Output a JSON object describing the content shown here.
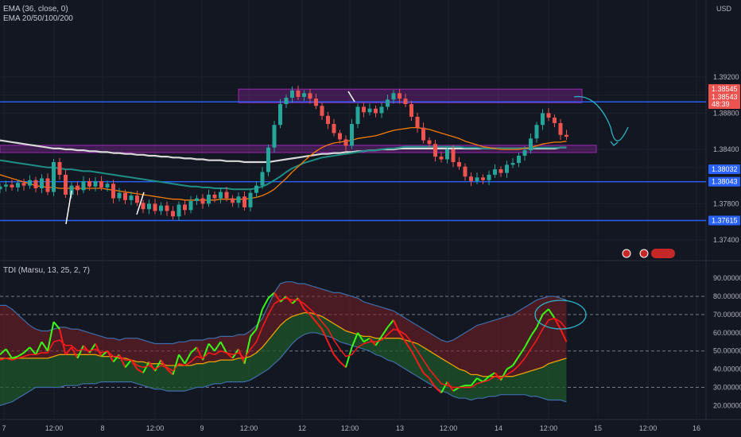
{
  "legends": {
    "ema36": "EMA (36, close, 0)",
    "ema_multi": "EMA 20/50/100/200",
    "tdi": "TDI (Marsu, 13, 25, 2, 7)"
  },
  "currency": "USD",
  "colors": {
    "background": "#131722",
    "bull": "#26a69a",
    "bear": "#ef5350",
    "hline": "#2962ff",
    "zone": "#9c27b0",
    "ema_orange": "#f57c00",
    "ema_teal": "#1f8f86",
    "ema_white": "#d8d8d8",
    "tdi_green": "#39ff14",
    "tdi_red": "#ff1a1a",
    "tdi_yellow": "#e8a200"
  },
  "chart_data": [
    {
      "type": "candlestick",
      "ylim": [
        1.372,
        1.392
      ],
      "y_ticks": [
        "1.39200",
        "1.39000",
        "1.38800",
        "1.38400",
        "1.38200",
        "1.37800",
        "1.37400"
      ],
      "x_ticks": [
        "7",
        "12:00",
        "8",
        "12:00",
        "9",
        "12:00",
        "12",
        "12:00",
        "13",
        "12:00",
        "14",
        "12:00",
        "15",
        "12:00",
        "16"
      ],
      "horizontal_lines": [
        1.38925,
        1.38043,
        1.37615
      ],
      "price_tags": [
        {
          "label": "1.38925",
          "kind": "line"
        },
        {
          "label": "1.38545",
          "kind": "bear"
        },
        {
          "label": "1.38543",
          "kind": "bear"
        },
        {
          "label": "48:39",
          "kind": "bear"
        },
        {
          "label": "1.38043",
          "kind": "line"
        },
        {
          "label": "1.38032",
          "kind": "line"
        },
        {
          "label": "1.37615",
          "kind": "line"
        }
      ],
      "zones": [
        {
          "from": 1.38915,
          "to": 1.39065
        },
        {
          "from": 1.38365,
          "to": 1.38445
        }
      ],
      "series_close": [
        1.3799,
        1.3801,
        1.3798,
        1.3803,
        1.38,
        1.3806,
        1.3797,
        1.3808,
        1.3793,
        1.3826,
        1.3812,
        1.379,
        1.38,
        1.3795,
        1.3805,
        1.3799,
        1.3805,
        1.3798,
        1.3802,
        1.3786,
        1.3792,
        1.3784,
        1.3789,
        1.3781,
        1.3774,
        1.378,
        1.3772,
        1.3778,
        1.3772,
        1.3766,
        1.3779,
        1.3773,
        1.3783,
        1.3786,
        1.378,
        1.379,
        1.3786,
        1.3793,
        1.3786,
        1.3781,
        1.3788,
        1.3776,
        1.3792,
        1.38,
        1.3815,
        1.3842,
        1.3867,
        1.389,
        1.3897,
        1.3905,
        1.3898,
        1.3902,
        1.3896,
        1.3888,
        1.3877,
        1.3868,
        1.3858,
        1.3851,
        1.3844,
        1.3868,
        1.3887,
        1.3881,
        1.3885,
        1.388,
        1.3887,
        1.3895,
        1.3902,
        1.3896,
        1.389,
        1.3876,
        1.3864,
        1.385,
        1.3846,
        1.3832,
        1.3829,
        1.384,
        1.3826,
        1.3821,
        1.381,
        1.3805,
        1.3809,
        1.3806,
        1.3812,
        1.3818,
        1.3814,
        1.3823,
        1.3825,
        1.3833,
        1.3839,
        1.3852,
        1.3867,
        1.388,
        1.3875,
        1.3869,
        1.3856,
        1.3854
      ],
      "ema36": [
        1.3812,
        1.381,
        1.3808,
        1.3806,
        1.3804,
        1.3802,
        1.38,
        1.3799,
        1.3798,
        1.3798,
        1.3797,
        1.3797,
        1.3797,
        1.3797,
        1.3797,
        1.3797,
        1.3797,
        1.3797,
        1.3796,
        1.3795,
        1.3794,
        1.3793,
        1.3792,
        1.3791,
        1.379,
        1.3789,
        1.3788,
        1.3787,
        1.3786,
        1.3785,
        1.3785,
        1.3784,
        1.3784,
        1.3784,
        1.3784,
        1.3784,
        1.3784,
        1.3785,
        1.3785,
        1.3785,
        1.3785,
        1.3785,
        1.3786,
        1.3787,
        1.3789,
        1.3792,
        1.3796,
        1.3802,
        1.3808,
        1.3815,
        1.3821,
        1.3827,
        1.3833,
        1.3838,
        1.3842,
        1.3845,
        1.3847,
        1.3848,
        1.3849,
        1.385,
        1.3852,
        1.3853,
        1.3854,
        1.3855,
        1.3857,
        1.3859,
        1.3861,
        1.3862,
        1.3863,
        1.3864,
        1.3864,
        1.3863,
        1.3862,
        1.386,
        1.3858,
        1.3856,
        1.3854,
        1.3852,
        1.3849,
        1.3847,
        1.3845,
        1.3843,
        1.3842,
        1.3841,
        1.384,
        1.384,
        1.384,
        1.384,
        1.3841,
        1.3842,
        1.3844,
        1.3846,
        1.3847,
        1.3848,
        1.3848,
        1.3849
      ],
      "ema_teal": [
        1.3828,
        1.3827,
        1.3826,
        1.3825,
        1.3824,
        1.3823,
        1.3822,
        1.3821,
        1.382,
        1.382,
        1.3819,
        1.3818,
        1.3818,
        1.3817,
        1.3816,
        1.3816,
        1.3815,
        1.3814,
        1.3813,
        1.3812,
        1.3811,
        1.381,
        1.3809,
        1.3808,
        1.3807,
        1.3806,
        1.3805,
        1.3804,
        1.3803,
        1.3802,
        1.3801,
        1.38,
        1.3799,
        1.3799,
        1.3798,
        1.3798,
        1.3797,
        1.3797,
        1.3797,
        1.3796,
        1.3796,
        1.3796,
        1.3796,
        1.3797,
        1.3799,
        1.3802,
        1.3806,
        1.381,
        1.3815,
        1.3819,
        1.3822,
        1.3825,
        1.3827,
        1.3829,
        1.3831,
        1.3832,
        1.3833,
        1.3834,
        1.3835,
        1.3836,
        1.3837,
        1.3838,
        1.3839,
        1.3839,
        1.384,
        1.3841,
        1.3841,
        1.3842,
        1.3843,
        1.3843,
        1.3843,
        1.3843,
        1.3843,
        1.3843,
        1.3843,
        1.3843,
        1.3843,
        1.3843,
        1.3842,
        1.3842,
        1.3842,
        1.3841,
        1.3841,
        1.3841,
        1.3841,
        1.3841,
        1.3841,
        1.3841,
        1.3841,
        1.3841,
        1.3842,
        1.3842,
        1.3842,
        1.3842,
        1.3842,
        1.3842
      ],
      "ema_white": [
        1.385,
        1.3849,
        1.3848,
        1.3847,
        1.3846,
        1.3845,
        1.3844,
        1.3843,
        1.3842,
        1.3841,
        1.3841,
        1.384,
        1.384,
        1.3839,
        1.3839,
        1.3838,
        1.3838,
        1.3837,
        1.3837,
        1.3836,
        1.3836,
        1.3835,
        1.3835,
        1.3834,
        1.3834,
        1.3833,
        1.3833,
        1.3832,
        1.3832,
        1.3831,
        1.3831,
        1.383,
        1.383,
        1.3829,
        1.3829,
        1.3828,
        1.3828,
        1.3828,
        1.3827,
        1.3827,
        1.3827,
        1.3826,
        1.3826,
        1.3826,
        1.3826,
        1.3826,
        1.3827,
        1.3828,
        1.3829,
        1.383,
        1.3831,
        1.3832,
        1.3833,
        1.3834,
        1.3835,
        1.3835,
        1.3836,
        1.3836,
        1.3837,
        1.3837,
        1.3838,
        1.3838,
        1.3839,
        1.3839,
        1.384,
        1.384,
        1.384,
        1.3841,
        1.3841,
        1.3841,
        1.3841,
        1.3841,
        1.3841,
        1.3841,
        1.3841,
        1.3841,
        1.3841,
        1.3841,
        1.3841,
        1.3841,
        1.3841,
        1.3841,
        1.3841,
        1.3841,
        1.3841,
        1.3841,
        1.3841,
        1.3841,
        1.3841,
        1.3841,
        1.3841,
        1.3841,
        1.3841,
        1.3841,
        1.3842,
        1.3842
      ]
    },
    {
      "type": "line",
      "title": "TDI (Marsu, 13, 25, 2, 7)",
      "ylim": [
        15,
        95
      ],
      "y_ticks": [
        "90.000000",
        "80.000000",
        "70.000000",
        "60.000000",
        "50.000000",
        "40.000000",
        "30.000000",
        "20.000000"
      ],
      "dashed_levels": [
        80,
        70,
        50,
        30
      ],
      "series": [
        {
          "values": [
            48,
            51,
            46,
            47,
            49,
            52,
            48,
            55,
            50,
            66,
            62,
            48,
            52,
            46,
            53,
            49,
            54,
            47,
            50,
            44,
            48,
            41,
            45,
            40,
            38,
            44,
            39,
            45,
            40,
            37,
            48,
            43,
            49,
            52,
            45,
            54,
            50,
            55,
            49,
            46,
            51,
            43,
            58,
            62,
            73,
            79,
            82,
            77,
            80,
            76,
            79,
            73,
            70,
            66,
            62,
            55,
            48,
            44,
            41,
            52,
            60,
            55,
            57,
            53,
            58,
            63,
            67,
            60,
            55,
            50,
            44,
            38,
            35,
            30,
            27,
            33,
            28,
            30,
            31,
            31,
            35,
            33,
            36,
            38,
            34,
            40,
            42,
            47,
            52,
            58,
            63,
            70,
            73,
            68,
            62,
            55
          ]
        },
        {
          "values": [
            45,
            46,
            45,
            46,
            47,
            48,
            48,
            49,
            49,
            55,
            56,
            53,
            53,
            50,
            51,
            50,
            51,
            49,
            50,
            47,
            47,
            45,
            45,
            42,
            41,
            42,
            40,
            42,
            41,
            39,
            43,
            42,
            44,
            47,
            46,
            49,
            48,
            50,
            49,
            48,
            49,
            46,
            51,
            55,
            63,
            70,
            76,
            78,
            79,
            78,
            78,
            76,
            73,
            70,
            66,
            62,
            56,
            51,
            47,
            48,
            52,
            54,
            55,
            55,
            56,
            59,
            62,
            61,
            59,
            55,
            50,
            45,
            40,
            36,
            32,
            31,
            30,
            30,
            30,
            30,
            32,
            33,
            34,
            36,
            35,
            37,
            39,
            42,
            46,
            51,
            56,
            62,
            67,
            68,
            66,
            62
          ]
        },
        {
          "values": [
            46,
            46,
            46,
            46,
            46,
            46,
            46,
            46,
            46,
            47,
            48,
            48,
            48,
            48,
            48,
            48,
            48,
            47,
            47,
            47,
            46,
            46,
            45,
            44,
            44,
            43,
            43,
            43,
            42,
            42,
            42,
            42,
            42,
            43,
            43,
            44,
            44,
            45,
            45,
            45,
            46,
            46,
            47,
            49,
            52,
            56,
            60,
            64,
            67,
            69,
            70,
            71,
            71,
            70,
            69,
            67,
            65,
            63,
            61,
            60,
            59,
            58,
            58,
            57,
            57,
            57,
            57,
            57,
            56,
            55,
            54,
            52,
            50,
            48,
            46,
            44,
            42,
            40,
            39,
            37,
            37,
            36,
            36,
            36,
            36,
            36,
            36,
            37,
            38,
            39,
            40,
            41,
            43,
            44,
            45,
            46
          ]
        },
        {
          "values": [
            75,
            75,
            73,
            70,
            67,
            64,
            62,
            61,
            61,
            62,
            63,
            63,
            62,
            62,
            61,
            60,
            59,
            58,
            57,
            57,
            56,
            57,
            57,
            57,
            56,
            55,
            54,
            54,
            54,
            54,
            55,
            55,
            56,
            56,
            56,
            57,
            57,
            58,
            58,
            58,
            59,
            59,
            61,
            64,
            68,
            75,
            82,
            87,
            88,
            88,
            87,
            87,
            86,
            85,
            84,
            83,
            82,
            82,
            81,
            80,
            79,
            77,
            76,
            75,
            74,
            73,
            72,
            70,
            68,
            66,
            64,
            62,
            60,
            58,
            56,
            55,
            56,
            58,
            60,
            62,
            64,
            65,
            66,
            67,
            68,
            69,
            70,
            72,
            74,
            76,
            78,
            79,
            80,
            80,
            79,
            78
          ]
        },
        {
          "values": [
            20,
            21,
            22,
            24,
            26,
            28,
            30,
            30,
            30,
            30,
            30,
            31,
            31,
            31,
            32,
            32,
            32,
            33,
            33,
            33,
            33,
            33,
            33,
            32,
            31,
            30,
            29,
            29,
            28,
            28,
            28,
            28,
            29,
            30,
            30,
            31,
            32,
            32,
            33,
            33,
            33,
            33,
            34,
            36,
            38,
            40,
            43,
            46,
            50,
            54,
            57,
            59,
            60,
            60,
            59,
            58,
            57,
            55,
            54,
            53,
            52,
            51,
            50,
            48,
            47,
            45,
            44,
            42,
            40,
            38,
            36,
            34,
            32,
            30,
            28,
            27,
            25,
            24,
            24,
            23,
            24,
            24,
            25,
            25,
            26,
            26,
            26,
            26,
            26,
            25,
            25,
            24,
            23,
            23,
            23,
            22
          ]
        }
      ]
    }
  ]
}
